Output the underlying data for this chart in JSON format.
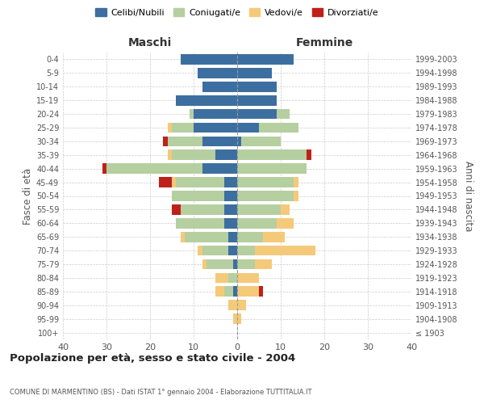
{
  "age_groups": [
    "100+",
    "95-99",
    "90-94",
    "85-89",
    "80-84",
    "75-79",
    "70-74",
    "65-69",
    "60-64",
    "55-59",
    "50-54",
    "45-49",
    "40-44",
    "35-39",
    "30-34",
    "25-29",
    "20-24",
    "15-19",
    "10-14",
    "5-9",
    "0-4"
  ],
  "birth_years": [
    "≤ 1903",
    "1904-1908",
    "1909-1913",
    "1914-1918",
    "1919-1923",
    "1924-1928",
    "1929-1933",
    "1934-1938",
    "1939-1943",
    "1944-1948",
    "1949-1953",
    "1954-1958",
    "1959-1963",
    "1964-1968",
    "1969-1973",
    "1974-1978",
    "1979-1983",
    "1984-1988",
    "1989-1993",
    "1994-1998",
    "1999-2003"
  ],
  "maschi": {
    "celibi": [
      0,
      0,
      0,
      1,
      0,
      1,
      2,
      2,
      3,
      3,
      3,
      3,
      8,
      5,
      8,
      10,
      10,
      14,
      8,
      9,
      13
    ],
    "coniugati": [
      0,
      0,
      0,
      2,
      2,
      6,
      6,
      10,
      11,
      10,
      12,
      11,
      22,
      10,
      8,
      5,
      1,
      0,
      0,
      0,
      0
    ],
    "vedovi": [
      0,
      1,
      2,
      2,
      3,
      1,
      1,
      1,
      0,
      0,
      0,
      1,
      0,
      1,
      0,
      1,
      0,
      0,
      0,
      0,
      0
    ],
    "divorziati": [
      0,
      0,
      0,
      0,
      0,
      0,
      0,
      0,
      0,
      2,
      0,
      3,
      1,
      0,
      1,
      0,
      0,
      0,
      0,
      0,
      0
    ]
  },
  "femmine": {
    "nubili": [
      0,
      0,
      0,
      0,
      0,
      0,
      0,
      0,
      0,
      0,
      0,
      0,
      0,
      0,
      1,
      5,
      9,
      9,
      9,
      8,
      13
    ],
    "coniugate": [
      0,
      0,
      0,
      0,
      0,
      4,
      4,
      6,
      9,
      10,
      13,
      13,
      16,
      16,
      9,
      9,
      3,
      0,
      0,
      0,
      0
    ],
    "vedove": [
      0,
      1,
      2,
      5,
      5,
      4,
      14,
      5,
      4,
      2,
      1,
      1,
      0,
      0,
      0,
      0,
      0,
      0,
      0,
      0,
      0
    ],
    "divorziate": [
      0,
      0,
      0,
      1,
      0,
      0,
      0,
      0,
      0,
      0,
      0,
      0,
      0,
      1,
      0,
      0,
      0,
      0,
      0,
      0,
      0
    ]
  },
  "colors": {
    "celibi_nubili": "#3c6fa0",
    "coniugati": "#b5cfa0",
    "vedovi": "#f5c97a",
    "divorziati": "#c0201a"
  },
  "xlim": 40,
  "title": "Popolazione per età, sesso e stato civile - 2004",
  "subtitle": "COMUNE DI MARMENTINO (BS) - Dati ISTAT 1° gennaio 2004 - Elaborazione TUTTITALIA.IT",
  "ylabel_left": "Fasce di età",
  "ylabel_right": "Anni di nascita",
  "xlabel_maschi": "Maschi",
  "xlabel_femmine": "Femmine",
  "legend_labels": [
    "Celibi/Nubili",
    "Coniugati/e",
    "Vedovi/e",
    "Divorziati/e"
  ],
  "background_color": "#ffffff",
  "grid_color": "#cccccc"
}
